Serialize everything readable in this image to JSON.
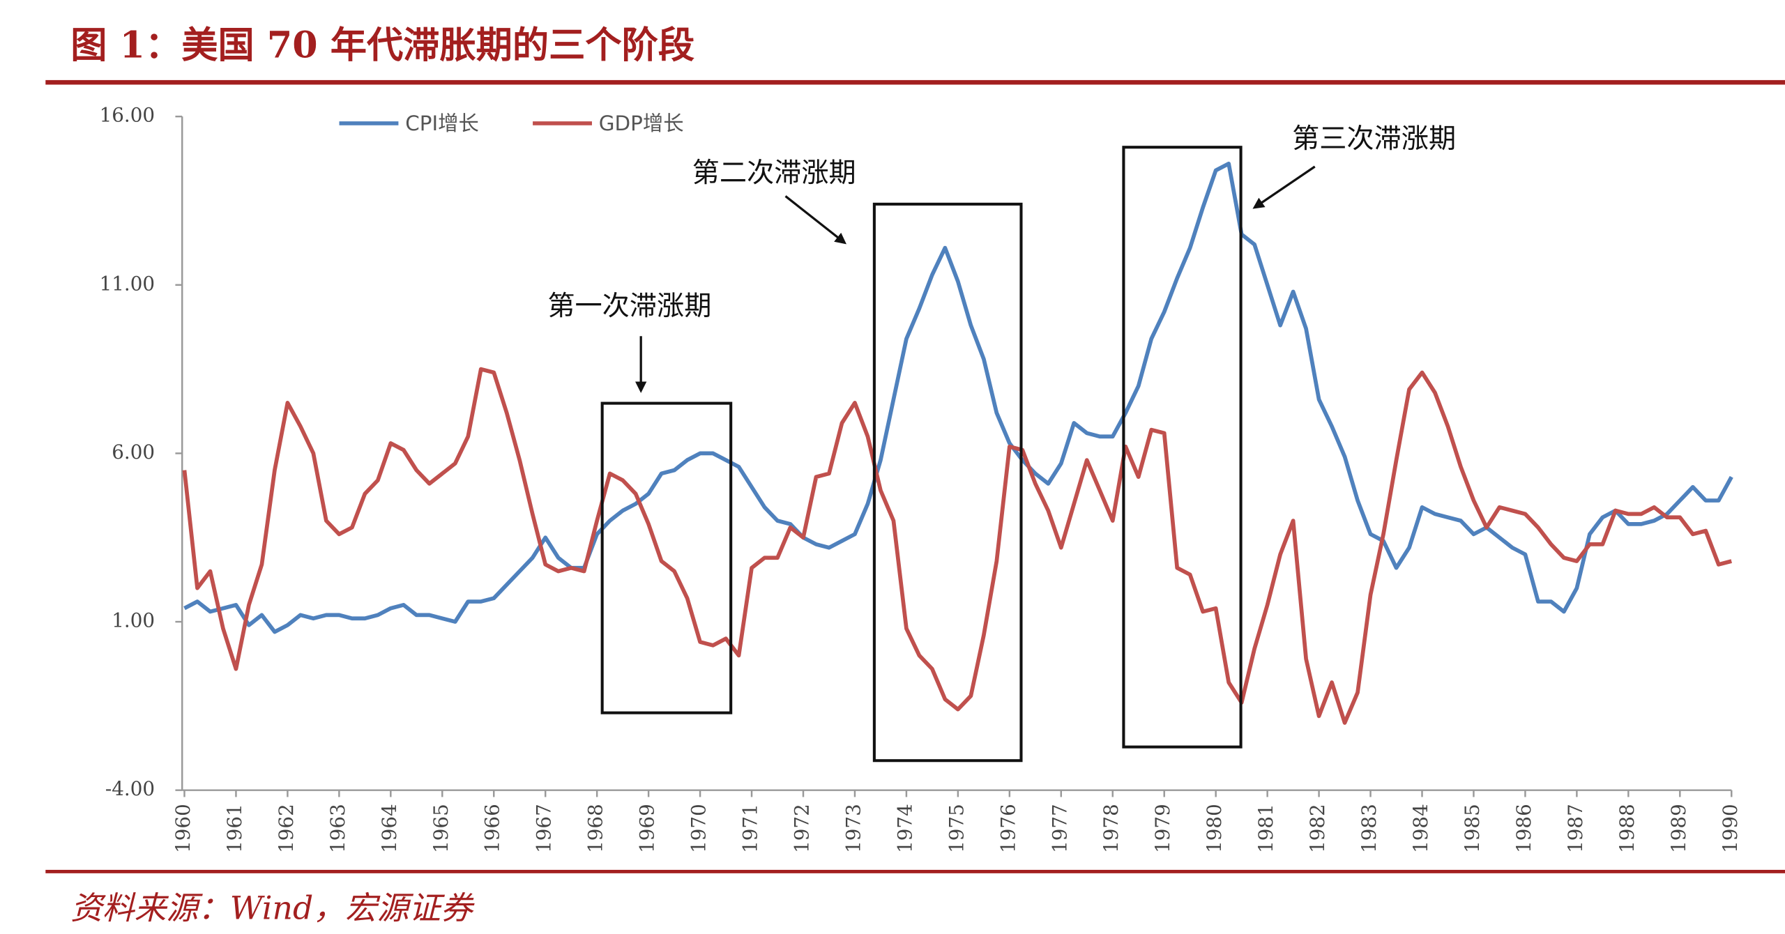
{
  "chart_data": {
    "type": "line",
    "title": "图 1：美国 70 年代滞胀期的三个阶段",
    "source": "资料来源：Wind，宏源证券",
    "annotations": [
      "第一次滞涨期",
      "第二次滞涨期",
      "第三次滞涨期"
    ],
    "categories": [
      "1960",
      null,
      null,
      null,
      "1961",
      null,
      null,
      null,
      "1962",
      null,
      null,
      null,
      "1963",
      null,
      null,
      null,
      "1964",
      null,
      null,
      null,
      "1965",
      null,
      null,
      null,
      "1966",
      null,
      null,
      null,
      "1967",
      null,
      null,
      null,
      "1968",
      null,
      null,
      null,
      "1969",
      null,
      null,
      null,
      "1970",
      null,
      null,
      null,
      "1971",
      null,
      null,
      null,
      "1972",
      null,
      null,
      null,
      "1973",
      null,
      null,
      null,
      "1974",
      null,
      null,
      null,
      "1975",
      null,
      null,
      null,
      "1976",
      null,
      null,
      null,
      "1977",
      null,
      null,
      null,
      "1978",
      null,
      null,
      null,
      "1979",
      null,
      null,
      null,
      "1980",
      null,
      null,
      null,
      "1981",
      null,
      null,
      null,
      "1982",
      null,
      null,
      null,
      "1983",
      null,
      null,
      null,
      "1984",
      null,
      null,
      null,
      "1985",
      null,
      null,
      null,
      "1986",
      null,
      null,
      null,
      "1987",
      null,
      null,
      null,
      "1988",
      null,
      null,
      null,
      "1989",
      null,
      null,
      null,
      "1990"
    ],
    "series": [
      {
        "name": "CPI增长",
        "color": "#4f81bd",
        "values": [
          1.4,
          1.6,
          1.3,
          1.4,
          1.5,
          0.9,
          1.2,
          0.7,
          0.9,
          1.2,
          1.1,
          1.2,
          1.2,
          1.1,
          1.1,
          1.2,
          1.4,
          1.5,
          1.2,
          1.2,
          1.1,
          1.0,
          1.6,
          1.6,
          1.7,
          2.1,
          2.5,
          2.9,
          3.5,
          2.9,
          2.6,
          2.6,
          3.6,
          4.0,
          4.3,
          4.5,
          4.8,
          5.4,
          5.5,
          5.8,
          6.0,
          6.0,
          5.8,
          5.6,
          5.0,
          4.4,
          4.0,
          3.9,
          3.5,
          3.3,
          3.2,
          3.4,
          3.6,
          4.5,
          5.8,
          7.6,
          9.4,
          10.3,
          11.3,
          12.1,
          11.1,
          9.8,
          8.8,
          7.2,
          6.3,
          5.8,
          5.4,
          5.1,
          5.7,
          6.9,
          6.6,
          6.5,
          6.5,
          7.2,
          8.0,
          9.4,
          10.2,
          11.2,
          12.1,
          13.3,
          14.4,
          14.6,
          12.5,
          12.2,
          11.0,
          9.8,
          10.8,
          9.7,
          7.6,
          6.8,
          5.9,
          4.6,
          3.6,
          3.4,
          2.6,
          3.2,
          4.4,
          4.2,
          4.1,
          4.0,
          3.6,
          3.8,
          3.5,
          3.2,
          3.0,
          1.6,
          1.6,
          1.3,
          2.0,
          3.6,
          4.1,
          4.3,
          3.9,
          3.9,
          4.0,
          4.2,
          4.6,
          5.0,
          4.6,
          4.6,
          5.3
        ]
      },
      {
        "name": "GDP增长",
        "color": "#c0504d",
        "values": [
          5.5,
          2.0,
          2.5,
          0.8,
          -0.4,
          1.5,
          2.7,
          5.5,
          7.5,
          6.8,
          6.0,
          4.0,
          3.6,
          3.8,
          4.8,
          5.2,
          6.3,
          6.1,
          5.5,
          5.1,
          5.4,
          5.7,
          6.5,
          8.5,
          8.4,
          7.2,
          5.8,
          4.2,
          2.7,
          2.5,
          2.6,
          2.5,
          4.0,
          5.4,
          5.2,
          4.8,
          3.9,
          2.8,
          2.5,
          1.7,
          0.4,
          0.3,
          0.5,
          0.0,
          2.6,
          2.9,
          2.9,
          3.8,
          3.5,
          5.3,
          5.4,
          6.9,
          7.5,
          6.5,
          4.9,
          4.0,
          0.8,
          0.0,
          -0.4,
          -1.3,
          -1.6,
          -1.2,
          0.6,
          2.8,
          6.2,
          6.1,
          5.1,
          4.3,
          3.2,
          4.5,
          5.8,
          4.9,
          4.0,
          6.2,
          5.3,
          6.7,
          6.6,
          2.6,
          2.4,
          1.3,
          1.4,
          -0.8,
          -1.4,
          0.2,
          1.5,
          3.0,
          4.0,
          -0.1,
          -1.8,
          -0.8,
          -2.0,
          -1.1,
          1.8,
          3.6,
          5.8,
          7.9,
          8.4,
          7.8,
          6.8,
          5.6,
          4.6,
          3.8,
          4.4,
          4.3,
          4.2,
          3.8,
          3.3,
          2.9,
          2.8,
          3.3,
          3.3,
          4.3,
          4.2,
          4.2,
          4.4,
          4.1,
          4.1,
          3.6,
          3.7,
          2.7,
          2.8
        ]
      }
    ],
    "ylim": [
      -4,
      16
    ],
    "yticks": [
      {
        "value": -4,
        "label": "-4.00"
      },
      {
        "value": 1,
        "label": "1.00"
      },
      {
        "value": 6,
        "label": "6.00"
      },
      {
        "value": 11,
        "label": "11.00"
      },
      {
        "value": 16,
        "label": "16.00"
      }
    ],
    "grid": false
  }
}
